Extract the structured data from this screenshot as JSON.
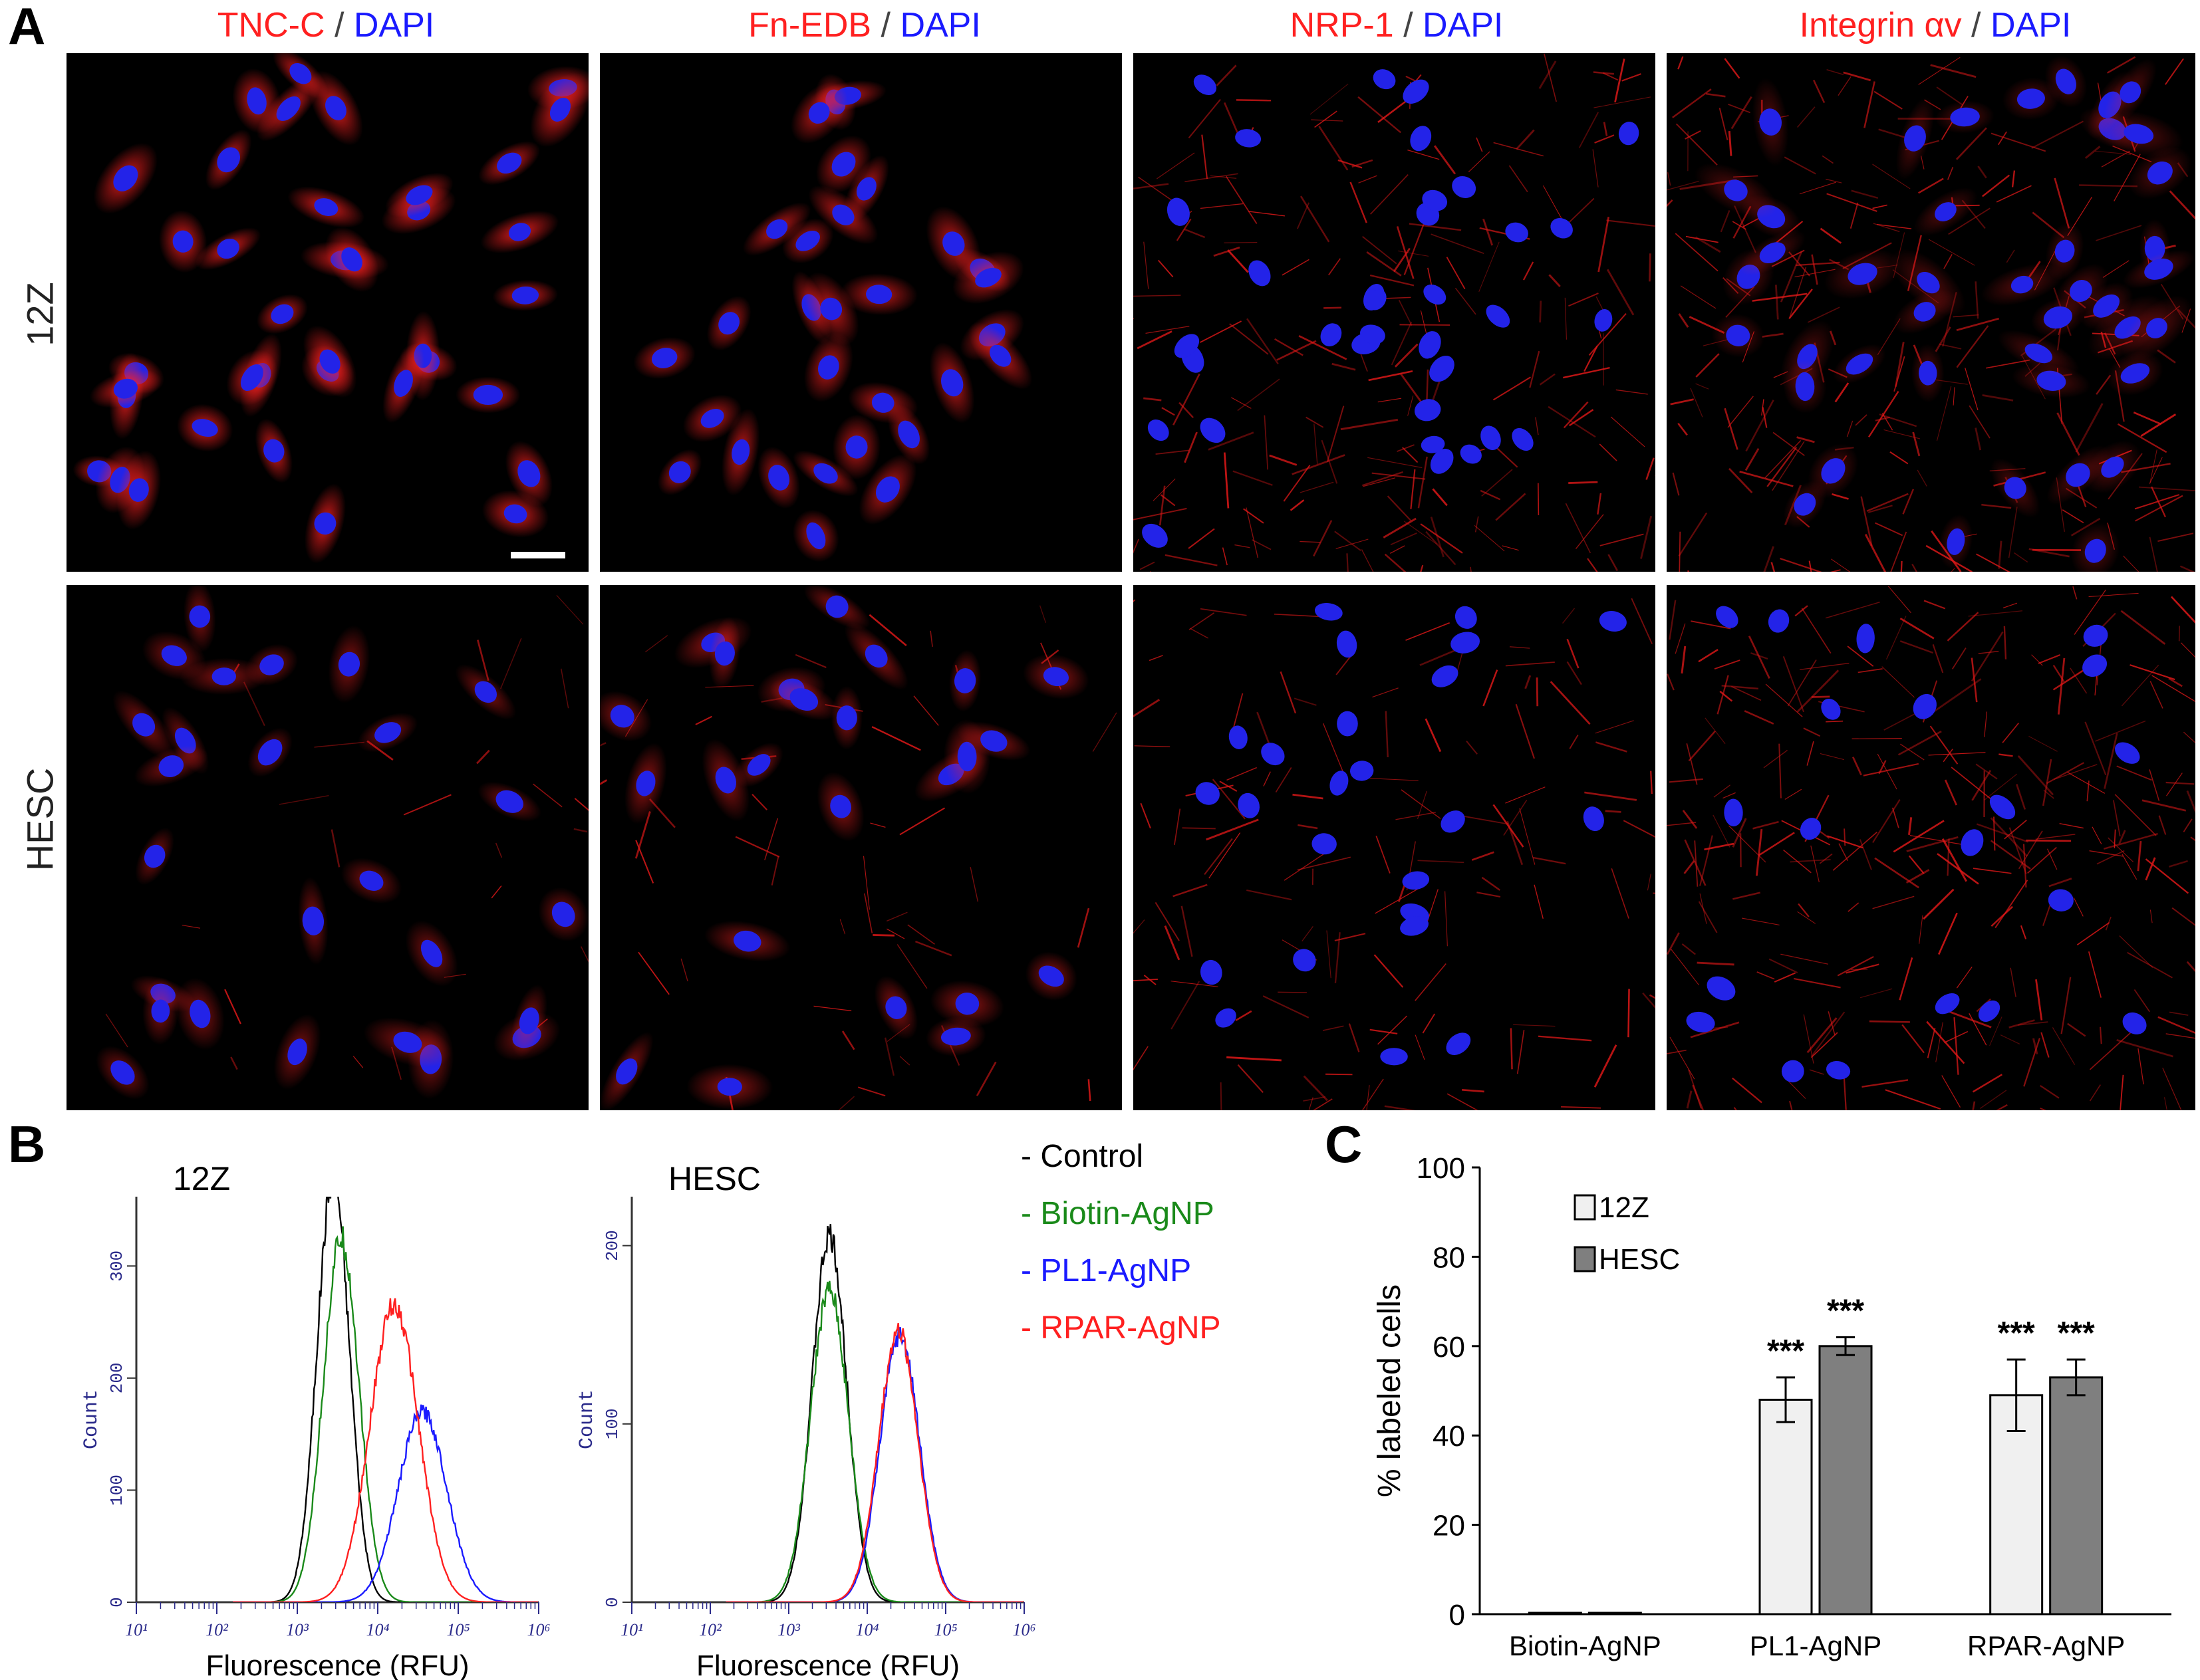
{
  "panels": {
    "A": "A",
    "B": "B",
    "C": "C"
  },
  "panel_a": {
    "columns": [
      {
        "marker": "TNC-C",
        "separator": " / ",
        "counterstain": "DAPI"
      },
      {
        "marker": "Fn-EDB",
        "separator": " / ",
        "counterstain": "DAPI"
      },
      {
        "marker": "NRP-1",
        "separator": " / ",
        "counterstain": "DAPI"
      },
      {
        "marker": "Integrin αv",
        "separator": " / ",
        "counterstain": "DAPI"
      }
    ],
    "rows": [
      "12Z",
      "HESC"
    ],
    "colors": {
      "marker": "#ff2020",
      "counterstain": "#1a1aff"
    }
  },
  "panel_b": {
    "plots": [
      {
        "title": "12Z",
        "ylabel": "Count",
        "xlabel": "Fluorescence (RFU)",
        "yticks": [
          "0",
          "100",
          "200",
          "300"
        ],
        "xticks": [
          "10¹",
          "10²",
          "10³",
          "10⁴",
          "10⁵",
          "10⁶"
        ]
      },
      {
        "title": "HESC",
        "ylabel": "Count",
        "xlabel": "Fluorescence (RFU)",
        "yticks": [
          "0",
          "100",
          "200"
        ],
        "xticks": [
          "10¹",
          "10²",
          "10³",
          "10⁴",
          "10⁵",
          "10⁶"
        ]
      }
    ],
    "legend": [
      {
        "label": "Control",
        "color": "#000000"
      },
      {
        "label": "Biotin-AgNP",
        "color": "#1a8a1a"
      },
      {
        "label": "PL1-AgNP",
        "color": "#1a1aff"
      },
      {
        "label": "RPAR-AgNP",
        "color": "#ff2020"
      }
    ]
  },
  "chart_data": [
    {
      "type": "line",
      "title": "12Z",
      "xlabel": "Fluorescence (RFU)",
      "ylabel": "Count",
      "x_scale": "log",
      "xlim": [
        10,
        1000000
      ],
      "ylim": [
        0,
        350
      ],
      "series": [
        {
          "name": "Control",
          "color": "#000000",
          "peak_x": 2800,
          "peak_y": 380,
          "width_decades": 0.2
        },
        {
          "name": "Biotin-AgNP",
          "color": "#1a8a1a",
          "peak_x": 3500,
          "peak_y": 325,
          "width_decades": 0.22
        },
        {
          "name": "PL1-AgNP",
          "color": "#1a1aff",
          "peak_x": 36000,
          "peak_y": 170,
          "width_decades": 0.3
        },
        {
          "name": "RPAR-AgNP",
          "color": "#ff2020",
          "peak_x": 16000,
          "peak_y": 265,
          "width_decades": 0.3
        }
      ]
    },
    {
      "type": "line",
      "title": "HESC",
      "xlabel": "Fluorescence (RFU)",
      "ylabel": "Count",
      "x_scale": "log",
      "xlim": [
        10,
        1000000
      ],
      "ylim": [
        0,
        220
      ],
      "series": [
        {
          "name": "Control",
          "color": "#000000",
          "peak_x": 3300,
          "peak_y": 205,
          "width_decades": 0.22
        },
        {
          "name": "Biotin-AgNP",
          "color": "#1a8a1a",
          "peak_x": 3300,
          "peak_y": 175,
          "width_decades": 0.24
        },
        {
          "name": "PL1-AgNP",
          "color": "#1a1aff",
          "peak_x": 26000,
          "peak_y": 150,
          "width_decades": 0.25
        },
        {
          "name": "RPAR-AgNP",
          "color": "#ff2020",
          "peak_x": 25000,
          "peak_y": 152,
          "width_decades": 0.25
        }
      ]
    },
    {
      "type": "bar",
      "categories": [
        "Biotin-AgNP",
        "PL1-AgNP",
        "RPAR-AgNP"
      ],
      "ylabel": "% labeled cells",
      "ylim": [
        0,
        100
      ],
      "yticks": [
        0,
        20,
        40,
        60,
        80,
        100
      ],
      "legend_position": "top-left",
      "series": [
        {
          "name": "12Z",
          "color": "#f0f0f0",
          "values": [
            0.3,
            48,
            49
          ],
          "errors": [
            0.3,
            5,
            8
          ],
          "annotations": [
            "",
            "***",
            "***"
          ]
        },
        {
          "name": "HESC",
          "color": "#7f7f7f",
          "values": [
            0.3,
            60,
            53
          ],
          "errors": [
            0.3,
            2,
            4
          ],
          "annotations": [
            "",
            "***",
            "***"
          ]
        }
      ]
    }
  ]
}
